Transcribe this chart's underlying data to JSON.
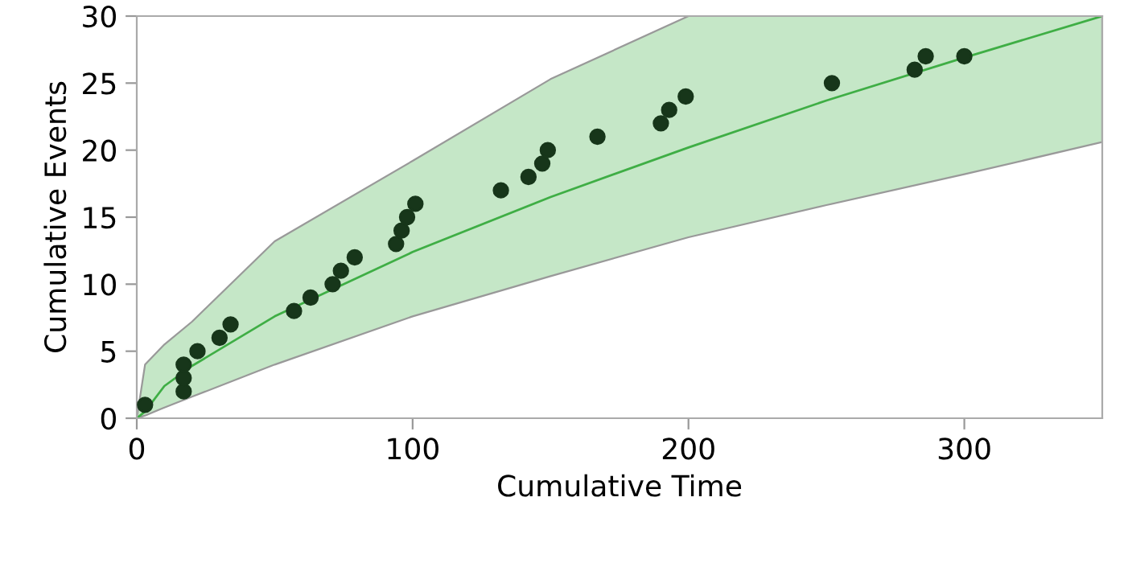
{
  "chart_data": {
    "type": "scatter",
    "xlabel": "Cumulative Time",
    "ylabel": "Cumulative Events",
    "xlim": [
      0,
      350
    ],
    "ylim": [
      0,
      30
    ],
    "xticks": [
      0,
      100,
      200,
      300
    ],
    "yticks": [
      0,
      5,
      10,
      15,
      20,
      25,
      30
    ],
    "grid": false,
    "marker": "circle",
    "series": [
      {
        "color": "#17361a",
        "x": [
          3,
          17,
          17,
          17,
          22,
          30,
          34,
          57,
          63,
          71,
          74,
          79,
          94,
          96,
          98,
          101,
          132,
          142,
          147,
          149,
          167,
          190,
          193,
          199,
          252,
          282,
          286,
          300
        ],
        "values": [
          1,
          2,
          3,
          4,
          5,
          6,
          7,
          8,
          9,
          10,
          11,
          12,
          13,
          14,
          15,
          16,
          17,
          18,
          19,
          20,
          21,
          22,
          23,
          24,
          25,
          26,
          27,
          27
        ]
      },
      {
        "type": "line",
        "color": "#3fae45",
        "marker": "none",
        "line_style": "solid",
        "x": [
          0,
          3,
          10,
          20,
          50,
          100,
          150,
          200,
          250,
          300,
          350
        ],
        "values": [
          0,
          0.5,
          2.4,
          3.9,
          7.6,
          12.4,
          16.5,
          20.2,
          23.7,
          26.9,
          30
        ],
        "lower": [
          0,
          0.2,
          0.8,
          1.6,
          4,
          7.6,
          10.6,
          13.5,
          15.9,
          18.2,
          20.6
        ],
        "upper": [
          0,
          4,
          5.5,
          7.2,
          13.2,
          19.2,
          25.3,
          30,
          30,
          30,
          30
        ]
      }
    ]
  }
}
